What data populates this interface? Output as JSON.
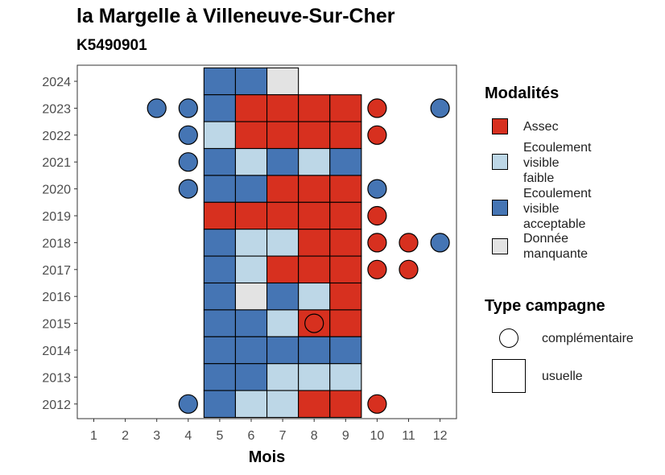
{
  "title": "la Margelle à Villeneuve-Sur-Cher",
  "subtitle": "K5490901",
  "legend": {
    "modalites_title": "Modalités",
    "modalites": [
      {
        "key": "assec",
        "label_lines": [
          "Assec"
        ],
        "color": "#d7301f"
      },
      {
        "key": "faible",
        "label_lines": [
          "Ecoulement",
          "visible",
          "faible"
        ],
        "color": "#bdd7e7"
      },
      {
        "key": "acceptable",
        "label_lines": [
          "Ecoulement",
          "visible",
          "acceptable"
        ],
        "color": "#4575b4"
      },
      {
        "key": "manquante",
        "label_lines": [
          "Donnée",
          "manquante"
        ],
        "color": "#e3e3e3"
      }
    ],
    "campagne_title": "Type campagne",
    "campagne": [
      {
        "key": "complementaire",
        "label": "complémentaire"
      },
      {
        "key": "usuelle",
        "label": "usuelle"
      }
    ]
  },
  "chart_data": {
    "type": "heatmap",
    "title": "la Margelle à Villeneuve-Sur-Cher",
    "subtitle": "K5490901",
    "xlabel": "Mois",
    "ylabel": "",
    "x_ticks": [
      1,
      2,
      3,
      4,
      5,
      6,
      7,
      8,
      9,
      10,
      11,
      12
    ],
    "y_ticks": [
      2012,
      2013,
      2014,
      2015,
      2016,
      2017,
      2018,
      2019,
      2020,
      2021,
      2022,
      2023,
      2024
    ],
    "colors": {
      "assec": "#d7301f",
      "faible": "#bdd7e7",
      "acceptable": "#4575b4",
      "manquante": "#e3e3e3"
    },
    "usuelle": [
      {
        "year": 2024,
        "values": {
          "5": "acceptable",
          "6": "acceptable",
          "7": "manquante"
        }
      },
      {
        "year": 2023,
        "values": {
          "5": "acceptable",
          "6": "assec",
          "7": "assec",
          "8": "assec",
          "9": "assec"
        }
      },
      {
        "year": 2022,
        "values": {
          "5": "faible",
          "6": "assec",
          "7": "assec",
          "8": "assec",
          "9": "assec"
        }
      },
      {
        "year": 2021,
        "values": {
          "5": "acceptable",
          "6": "faible",
          "7": "acceptable",
          "8": "faible",
          "9": "acceptable"
        }
      },
      {
        "year": 2020,
        "values": {
          "5": "acceptable",
          "6": "acceptable",
          "7": "assec",
          "8": "assec",
          "9": "assec"
        }
      },
      {
        "year": 2019,
        "values": {
          "5": "assec",
          "6": "assec",
          "7": "assec",
          "8": "assec",
          "9": "assec"
        }
      },
      {
        "year": 2018,
        "values": {
          "5": "acceptable",
          "6": "faible",
          "7": "faible",
          "8": "assec",
          "9": "assec"
        }
      },
      {
        "year": 2017,
        "values": {
          "5": "acceptable",
          "6": "faible",
          "7": "assec",
          "8": "assec",
          "9": "assec"
        }
      },
      {
        "year": 2016,
        "values": {
          "5": "acceptable",
          "6": "manquante",
          "7": "acceptable",
          "8": "faible",
          "9": "assec"
        }
      },
      {
        "year": 2015,
        "values": {
          "5": "acceptable",
          "6": "acceptable",
          "7": "faible",
          "8": "assec",
          "9": "assec"
        }
      },
      {
        "year": 2014,
        "values": {
          "5": "acceptable",
          "6": "acceptable",
          "7": "acceptable",
          "8": "acceptable",
          "9": "acceptable"
        }
      },
      {
        "year": 2013,
        "values": {
          "5": "acceptable",
          "6": "acceptable",
          "7": "faible",
          "8": "faible",
          "9": "faible"
        }
      },
      {
        "year": 2012,
        "values": {
          "5": "acceptable",
          "6": "faible",
          "7": "faible",
          "8": "assec",
          "9": "assec"
        }
      }
    ],
    "complementaire": [
      {
        "year": 2023,
        "month": 3,
        "value": "acceptable"
      },
      {
        "year": 2023,
        "month": 4,
        "value": "acceptable"
      },
      {
        "year": 2023,
        "month": 10,
        "value": "assec"
      },
      {
        "year": 2023,
        "month": 12,
        "value": "acceptable"
      },
      {
        "year": 2022,
        "month": 4,
        "value": "acceptable"
      },
      {
        "year": 2022,
        "month": 10,
        "value": "assec"
      },
      {
        "year": 2021,
        "month": 4,
        "value": "acceptable"
      },
      {
        "year": 2020,
        "month": 4,
        "value": "acceptable"
      },
      {
        "year": 2020,
        "month": 10,
        "value": "acceptable"
      },
      {
        "year": 2019,
        "month": 10,
        "value": "assec"
      },
      {
        "year": 2018,
        "month": 10,
        "value": "assec"
      },
      {
        "year": 2018,
        "month": 11,
        "value": "assec"
      },
      {
        "year": 2018,
        "month": 12,
        "value": "acceptable"
      },
      {
        "year": 2017,
        "month": 10,
        "value": "assec"
      },
      {
        "year": 2017,
        "month": 11,
        "value": "assec"
      },
      {
        "year": 2015,
        "month": 8,
        "value": "assec"
      },
      {
        "year": 2012,
        "month": 4,
        "value": "acceptable"
      },
      {
        "year": 2012,
        "month": 10,
        "value": "assec"
      }
    ]
  }
}
